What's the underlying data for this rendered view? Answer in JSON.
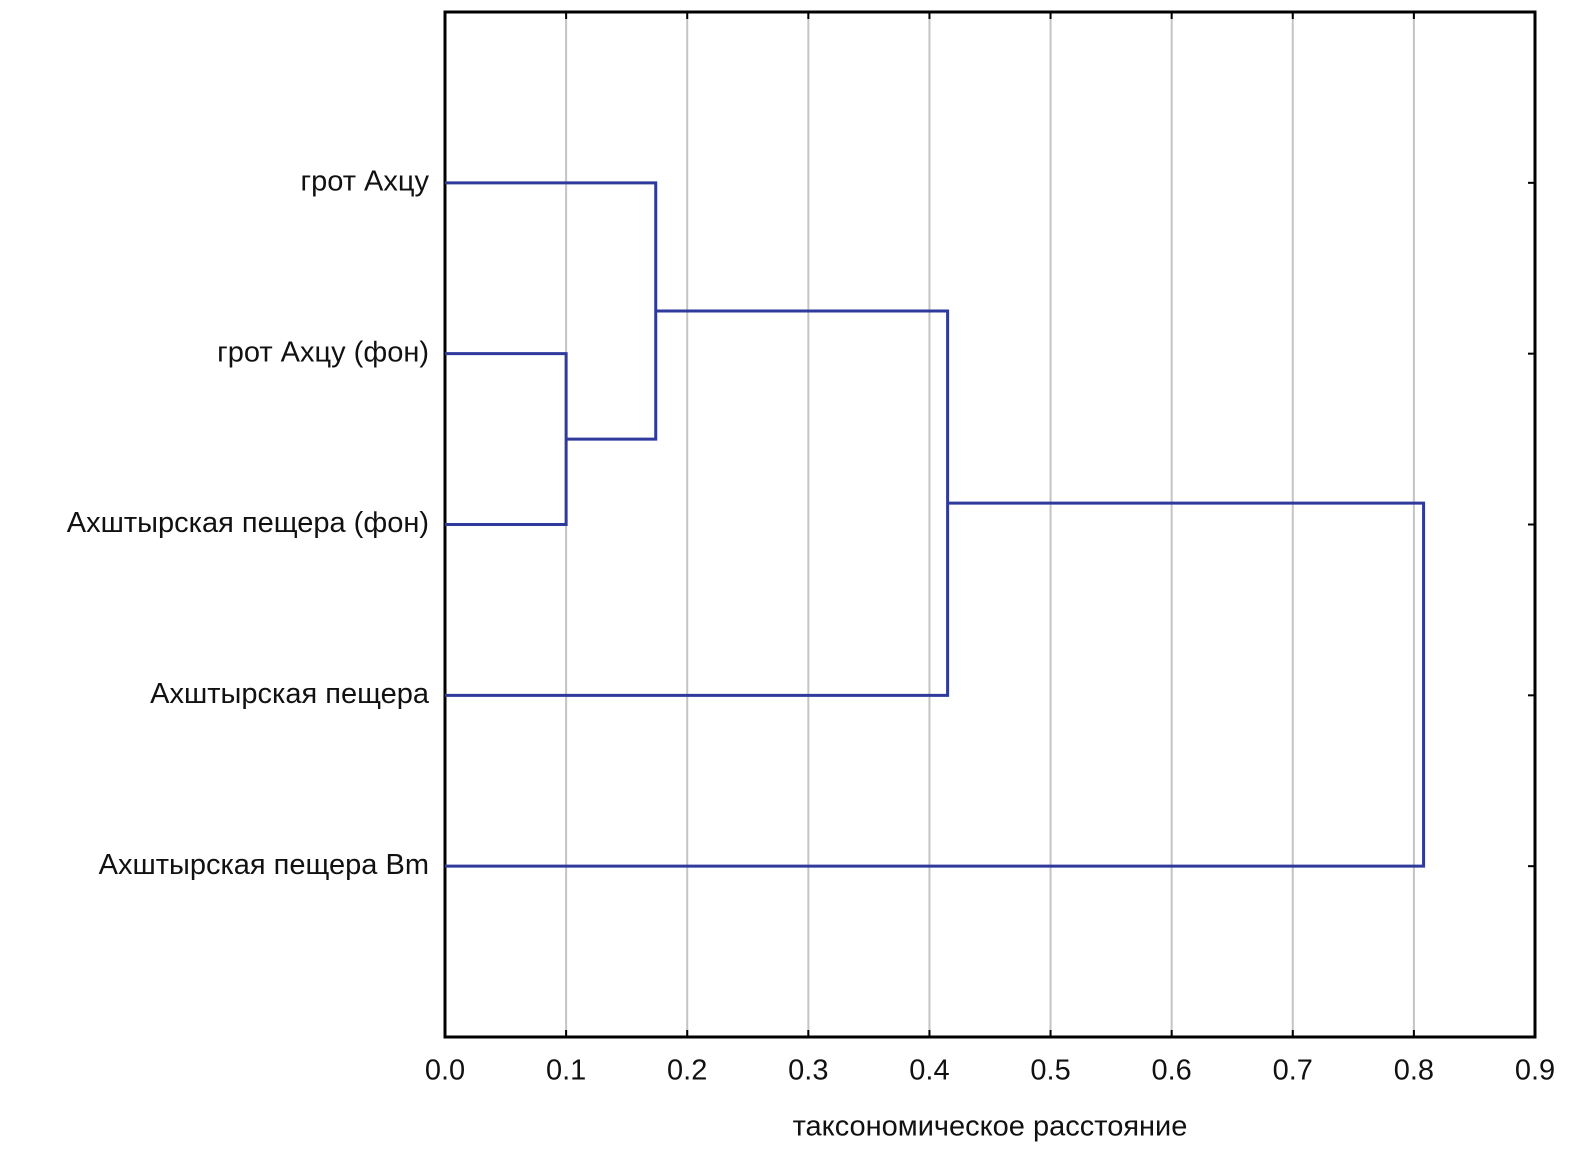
{
  "chart_data": {
    "type": "dendrogram",
    "orientation": "horizontal",
    "leaves": [
      "грот Ахцу",
      "грот Ахцу (фон)",
      "Ахштырская пещера (фон)",
      "Ахштырская пещера",
      "Ахштырская пещера Bm"
    ],
    "merges": [
      {
        "members": [
          1,
          2
        ],
        "distance": 0.1
      },
      {
        "members": [
          0,
          5
        ],
        "distance": 0.174
      },
      {
        "members": [
          6,
          3
        ],
        "distance": 0.415
      },
      {
        "members": [
          7,
          4
        ],
        "distance": 0.808
      }
    ],
    "color": "#2f3a9c",
    "xlabel": "таксономическое расстояние",
    "xlim": [
      0,
      0.9
    ],
    "xticks": [
      {
        "value": 0,
        "label": "0.0"
      },
      0.1,
      0.2,
      0.3,
      0.4,
      0.5,
      0.6,
      0.7,
      0.8,
      0.9
    ],
    "grid": true
  }
}
